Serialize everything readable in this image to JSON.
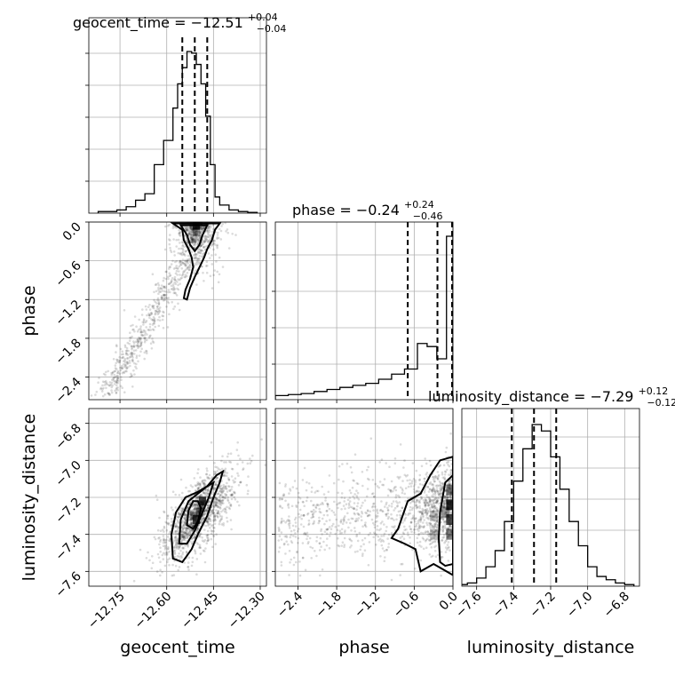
{
  "chart_data": {
    "type": "scatter",
    "plot_kind": "corner",
    "parameters": [
      "geocent_time",
      "phase",
      "luminosity_distance"
    ],
    "titles": {
      "geocent_time": {
        "prefix": "geocent_time = −12.51",
        "plus": "+0.04",
        "minus": "−0.04"
      },
      "phase": {
        "prefix": "phase = −0.24",
        "plus": "+0.24",
        "minus": "−0.46"
      },
      "luminosity_distance": {
        "prefix": "luminosity_distance = −7.29",
        "plus": "+0.12",
        "minus": "−0.12"
      }
    },
    "axis_labels": {
      "geocent_time": "geocent_time",
      "phase": "phase",
      "luminosity_distance": "luminosity_distance"
    },
    "ranges": {
      "geocent_time": [
        -12.85,
        -12.28
      ],
      "phase": [
        -2.75,
        0.0
      ],
      "luminosity_distance": [
        -7.68,
        -6.72
      ]
    },
    "ticks": {
      "geocent_time": [
        "−12.75",
        "−12.60",
        "−12.45",
        "−12.30"
      ],
      "geocent_time_values": [
        -12.75,
        -12.6,
        -12.45,
        -12.3
      ],
      "phase": [
        "−2.4",
        "−1.8",
        "−1.2",
        "−0.6",
        "0.0"
      ],
      "phase_values": [
        -2.4,
        -1.8,
        -1.2,
        -0.6,
        0.0
      ],
      "luminosity_distance": [
        "−7.6",
        "−7.4",
        "−7.2",
        "−7.0",
        "−6.8"
      ],
      "luminosity_distance_values": [
        -7.6,
        -7.4,
        -7.2,
        -7.0,
        -6.8
      ]
    },
    "quantiles": {
      "geocent_time": [
        -12.55,
        -12.51,
        -12.47
      ],
      "phase": [
        -0.7,
        -0.24,
        0.0
      ],
      "luminosity_distance": [
        -7.41,
        -7.29,
        -7.17
      ]
    },
    "histograms": {
      "geocent_time": {
        "edges": [
          -12.82,
          -12.79,
          -12.76,
          -12.73,
          -12.7,
          -12.67,
          -12.64,
          -12.61,
          -12.58,
          -12.565,
          -12.55,
          -12.535,
          -12.52,
          -12.505,
          -12.49,
          -12.475,
          -12.46,
          -12.445,
          -12.43,
          -12.4,
          -12.37,
          -12.34,
          -12.31
        ],
        "counts": [
          1,
          1,
          2,
          4,
          8,
          12,
          30,
          45,
          65,
          80,
          90,
          100,
          99,
          92,
          80,
          60,
          30,
          10,
          5,
          2,
          1,
          0.5
        ]
      },
      "phase": {
        "edges": [
          -2.75,
          -2.55,
          -2.35,
          -2.15,
          -1.95,
          -1.75,
          -1.55,
          -1.35,
          -1.15,
          -0.95,
          -0.75,
          -0.55,
          -0.4,
          -0.25,
          -0.1,
          0.0
        ],
        "counts": [
          4,
          5,
          6,
          8,
          10,
          12,
          14,
          16,
          20,
          25,
          30,
          55,
          52,
          40,
          160
        ]
      },
      "luminosity_distance": {
        "edges": [
          -7.7,
          -7.65,
          -7.6,
          -7.55,
          -7.5,
          -7.45,
          -7.4,
          -7.35,
          -7.3,
          -7.25,
          -7.2,
          -7.15,
          -7.1,
          -7.05,
          -7.0,
          -6.95,
          -6.9,
          -6.85,
          -6.8,
          -6.75
        ],
        "counts": [
          1,
          2,
          5,
          12,
          22,
          40,
          65,
          85,
          100,
          96,
          80,
          60,
          40,
          25,
          12,
          6,
          4,
          2,
          1
        ]
      }
    },
    "contours": {
      "phase_vs_geocent_time": [
        {
          "level": "outer",
          "points": [
            [
              -12.58,
              -0.02
            ],
            [
              -12.55,
              -0.12
            ],
            [
              -12.545,
              -0.28
            ],
            [
              -12.53,
              -0.42
            ],
            [
              -12.52,
              -0.55
            ],
            [
              -12.515,
              -0.7
            ],
            [
              -12.525,
              -0.88
            ],
            [
              -12.54,
              -1.05
            ],
            [
              -12.545,
              -1.18
            ],
            [
              -12.535,
              -1.2
            ],
            [
              -12.525,
              -1.02
            ],
            [
              -12.51,
              -0.85
            ],
            [
              -12.495,
              -0.7
            ],
            [
              -12.48,
              -0.55
            ],
            [
              -12.47,
              -0.42
            ],
            [
              -12.455,
              -0.28
            ],
            [
              -12.445,
              -0.12
            ],
            [
              -12.43,
              -0.02
            ]
          ]
        },
        {
          "level": "inner",
          "points": [
            [
              -12.555,
              -0.05
            ],
            [
              -12.535,
              -0.2
            ],
            [
              -12.525,
              -0.35
            ],
            [
              -12.51,
              -0.45
            ],
            [
              -12.495,
              -0.35
            ],
            [
              -12.485,
              -0.2
            ],
            [
              -12.47,
              -0.05
            ]
          ]
        }
      ],
      "luminosity_distance_vs_geocent_time": [
        {
          "level": "outer",
          "points": [
            [
              -12.58,
              -7.53
            ],
            [
              -12.55,
              -7.55
            ],
            [
              -12.52,
              -7.48
            ],
            [
              -12.5,
              -7.4
            ],
            [
              -12.47,
              -7.3
            ],
            [
              -12.45,
              -7.2
            ],
            [
              -12.43,
              -7.12
            ],
            [
              -12.42,
              -7.06
            ],
            [
              -12.44,
              -7.08
            ],
            [
              -12.47,
              -7.14
            ],
            [
              -12.5,
              -7.17
            ],
            [
              -12.54,
              -7.2
            ],
            [
              -12.57,
              -7.28
            ],
            [
              -12.585,
              -7.4
            ]
          ]
        },
        {
          "level": "middle",
          "points": [
            [
              -12.56,
              -7.45
            ],
            [
              -12.535,
              -7.45
            ],
            [
              -12.51,
              -7.38
            ],
            [
              -12.49,
              -7.3
            ],
            [
              -12.465,
              -7.2
            ],
            [
              -12.45,
              -7.12
            ],
            [
              -12.47,
              -7.14
            ],
            [
              -12.5,
              -7.18
            ],
            [
              -12.53,
              -7.22
            ],
            [
              -12.555,
              -7.32
            ]
          ]
        },
        {
          "level": "inner",
          "points": [
            [
              -12.535,
              -7.35
            ],
            [
              -12.515,
              -7.37
            ],
            [
              -12.5,
              -7.33
            ],
            [
              -12.49,
              -7.26
            ],
            [
              -12.5,
              -7.22
            ],
            [
              -12.515,
              -7.22
            ],
            [
              -12.53,
              -7.27
            ]
          ]
        }
      ],
      "luminosity_distance_vs_phase": [
        {
          "level": "outer",
          "points": [
            [
              -0.95,
              -7.42
            ],
            [
              -0.85,
              -7.37
            ],
            [
              -0.7,
              -7.22
            ],
            [
              -0.5,
              -7.18
            ],
            [
              -0.35,
              -7.08
            ],
            [
              -0.2,
              -7.0
            ],
            [
              0.0,
              -6.98
            ],
            [
              0.0,
              -7.62
            ],
            [
              -0.3,
              -7.56
            ],
            [
              -0.5,
              -7.6
            ],
            [
              -0.58,
              -7.48
            ],
            [
              -0.75,
              -7.45
            ]
          ]
        },
        {
          "level": "inner",
          "points": [
            [
              -0.22,
              -7.42
            ],
            [
              -0.2,
              -7.28
            ],
            [
              -0.12,
              -7.12
            ],
            [
              0.0,
              -7.08
            ],
            [
              0.0,
              -7.56
            ],
            [
              -0.12,
              -7.57
            ],
            [
              -0.2,
              -7.55
            ]
          ]
        }
      ]
    }
  }
}
